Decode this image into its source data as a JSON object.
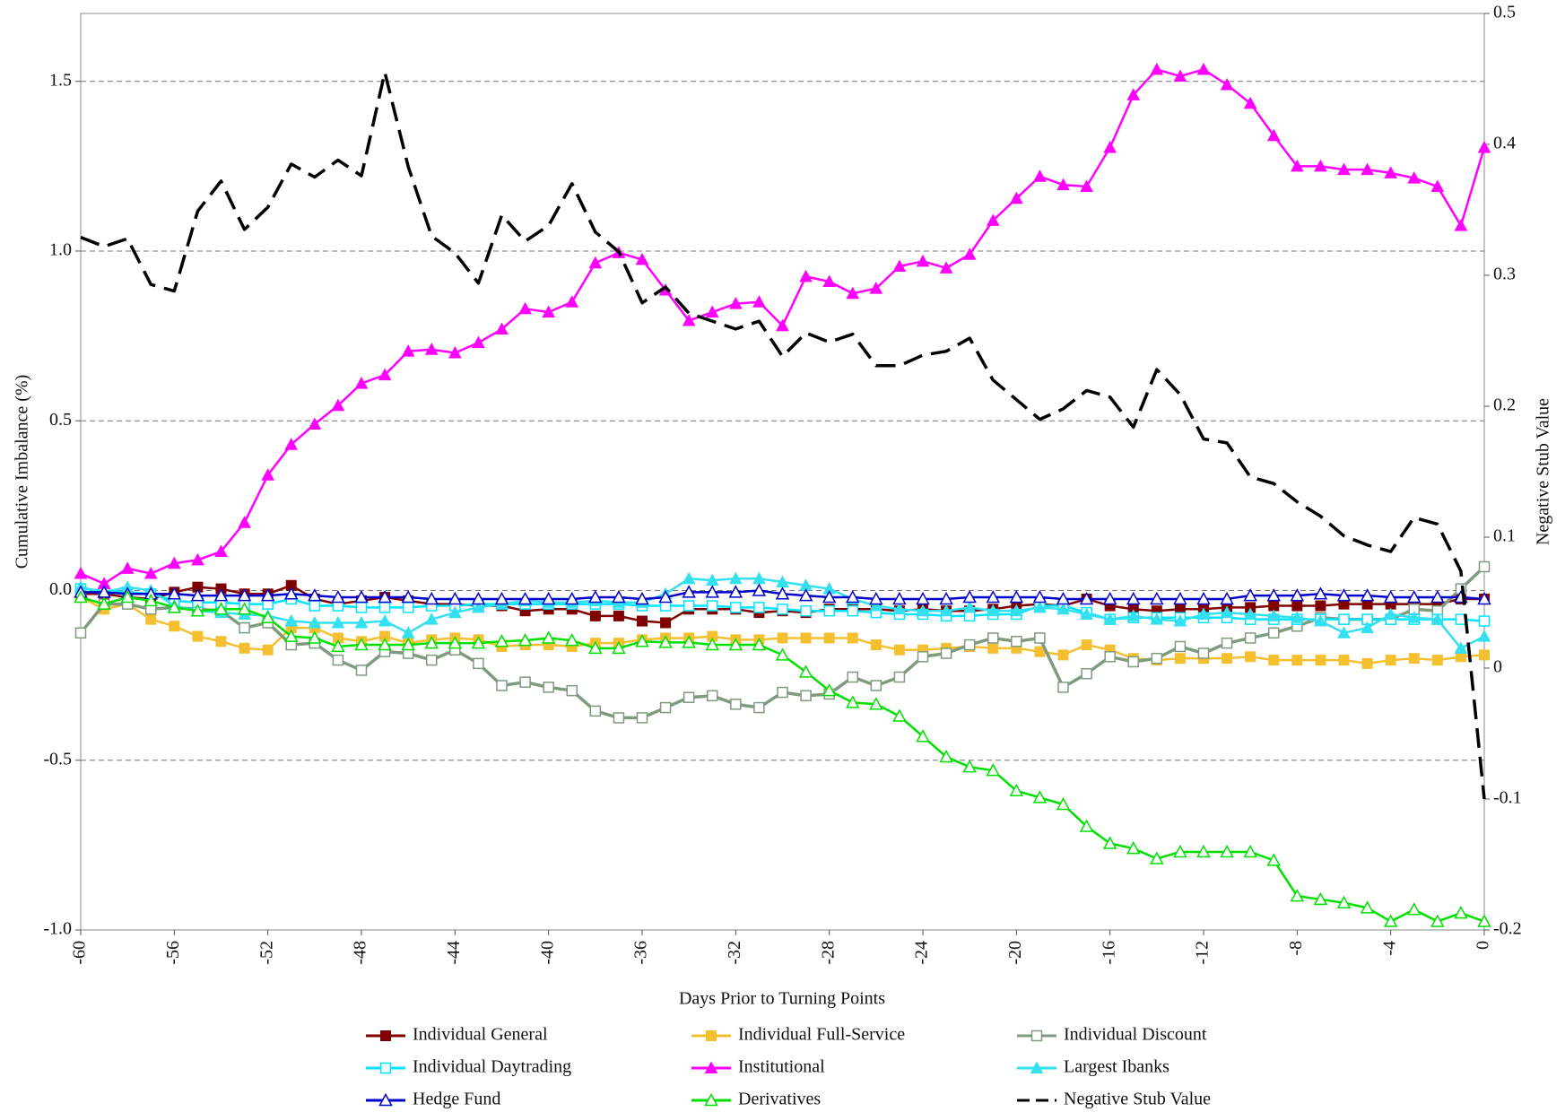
{
  "chart_data": {
    "type": "line",
    "x_label": "Days Prior to Turning Points",
    "y_label": "Cumulative Imbalance (%)",
    "y2_label": "Negative Stub Value",
    "x": [
      -60,
      -59,
      -58,
      -57,
      -56,
      -55,
      -54,
      -53,
      -52,
      -51,
      -50,
      -49,
      -48,
      -47,
      -46,
      -45,
      -44,
      -43,
      -42,
      -41,
      -40,
      -39,
      -38,
      -37,
      -36,
      -35,
      -34,
      -33,
      -32,
      -31,
      -30,
      -29,
      -28,
      -27,
      -26,
      -25,
      -24,
      -23,
      -22,
      -21,
      -20,
      -19,
      -18,
      -17,
      -16,
      -15,
      -14,
      -13,
      -12,
      -11,
      -10,
      -9,
      -8,
      -7,
      -6,
      -5,
      -4,
      -3,
      -2,
      -1,
      0
    ],
    "xlim": [
      -60,
      0
    ],
    "xticks": [
      -60,
      -56,
      -52,
      -48,
      -44,
      -40,
      -36,
      -32,
      -28,
      -24,
      -20,
      -16,
      -12,
      -8,
      -4,
      0
    ],
    "ylim": [
      -1,
      1.7
    ],
    "yticks": [
      {
        "value": -1,
        "label": "-1.0"
      },
      -0.5,
      {
        "value": 0,
        "label": "0.0"
      },
      0.5,
      {
        "value": 1,
        "label": "1.0"
      },
      1.5
    ],
    "y2lim": [
      -0.2,
      0.5
    ],
    "y2ticks": [
      -0.2,
      -0.1,
      0,
      0.1,
      0.2,
      0.3,
      0.4,
      0.5
    ],
    "grid": true,
    "series": [
      {
        "name": "Individual General",
        "color": "#800000",
        "marker": "square",
        "values": [
          -0.01,
          -0.01,
          -0.02,
          -0.025,
          -0.005,
          0.01,
          0.005,
          -0.01,
          -0.01,
          0.015,
          -0.025,
          -0.04,
          -0.03,
          -0.02,
          -0.03,
          -0.04,
          -0.04,
          -0.045,
          -0.045,
          -0.06,
          -0.055,
          -0.055,
          -0.075,
          -0.075,
          -0.09,
          -0.095,
          -0.055,
          -0.055,
          -0.055,
          -0.065,
          -0.06,
          -0.065,
          -0.055,
          -0.055,
          -0.055,
          -0.06,
          -0.055,
          -0.06,
          -0.06,
          -0.055,
          -0.045,
          -0.04,
          -0.045,
          -0.025,
          -0.045,
          -0.055,
          -0.06,
          -0.055,
          -0.055,
          -0.05,
          -0.05,
          -0.045,
          -0.045,
          -0.045,
          -0.04,
          -0.04,
          -0.04,
          -0.04,
          -0.04,
          -0.025,
          -0.025
        ]
      },
      {
        "name": "Individual Full-Service",
        "color": "#f5c030",
        "marker": "square",
        "values": [
          -0.02,
          -0.055,
          -0.04,
          -0.085,
          -0.105,
          -0.135,
          -0.15,
          -0.17,
          -0.175,
          -0.11,
          -0.11,
          -0.14,
          -0.15,
          -0.135,
          -0.155,
          -0.145,
          -0.14,
          -0.145,
          -0.165,
          -0.16,
          -0.16,
          -0.165,
          -0.155,
          -0.155,
          -0.145,
          -0.14,
          -0.14,
          -0.135,
          -0.145,
          -0.145,
          -0.14,
          -0.14,
          -0.14,
          -0.14,
          -0.16,
          -0.175,
          -0.175,
          -0.17,
          -0.165,
          -0.17,
          -0.17,
          -0.18,
          -0.19,
          -0.16,
          -0.175,
          -0.2,
          -0.205,
          -0.2,
          -0.2,
          -0.2,
          -0.195,
          -0.205,
          -0.205,
          -0.205,
          -0.205,
          -0.215,
          -0.205,
          -0.2,
          -0.205,
          -0.195,
          -0.19
        ]
      },
      {
        "name": "Individual Discount",
        "color": "#7f9a7f",
        "marker": "open-square",
        "values": [
          -0.125,
          -0.04,
          -0.04,
          -0.055,
          -0.05,
          -0.055,
          -0.06,
          -0.11,
          -0.095,
          -0.16,
          -0.155,
          -0.205,
          -0.235,
          -0.18,
          -0.185,
          -0.205,
          -0.175,
          -0.215,
          -0.28,
          -0.27,
          -0.285,
          -0.295,
          -0.355,
          -0.375,
          -0.375,
          -0.345,
          -0.315,
          -0.31,
          -0.335,
          -0.345,
          -0.3,
          -0.31,
          -0.305,
          -0.255,
          -0.28,
          -0.255,
          -0.195,
          -0.185,
          -0.16,
          -0.14,
          -0.15,
          -0.14,
          -0.285,
          -0.245,
          -0.195,
          -0.21,
          -0.2,
          -0.165,
          -0.185,
          -0.155,
          -0.14,
          -0.125,
          -0.105,
          -0.08,
          -0.085,
          -0.085,
          -0.085,
          -0.055,
          -0.06,
          0.005,
          0.07
        ]
      },
      {
        "name": "Individual Daytrading",
        "color": "#00e5ff",
        "marker": "open-square",
        "values": [
          0.005,
          0.0,
          -0.005,
          -0.01,
          -0.03,
          -0.035,
          -0.035,
          -0.04,
          -0.04,
          -0.025,
          -0.045,
          -0.045,
          -0.05,
          -0.05,
          -0.05,
          -0.045,
          -0.045,
          -0.04,
          -0.04,
          -0.04,
          -0.04,
          -0.04,
          -0.04,
          -0.04,
          -0.045,
          -0.045,
          -0.045,
          -0.045,
          -0.05,
          -0.05,
          -0.055,
          -0.06,
          -0.06,
          -0.06,
          -0.065,
          -0.07,
          -0.07,
          -0.075,
          -0.075,
          -0.07,
          -0.07,
          -0.045,
          -0.045,
          -0.065,
          -0.085,
          -0.08,
          -0.08,
          -0.08,
          -0.08,
          -0.08,
          -0.085,
          -0.085,
          -0.085,
          -0.085,
          -0.085,
          -0.085,
          -0.085,
          -0.085,
          -0.085,
          -0.085,
          -0.09
        ]
      },
      {
        "name": "Institutional",
        "color": "#ff00ff",
        "marker": "triangle",
        "values": [
          0.05,
          0.02,
          0.065,
          0.05,
          0.08,
          0.09,
          0.115,
          0.2,
          0.34,
          0.43,
          0.49,
          0.545,
          0.61,
          0.635,
          0.705,
          0.71,
          0.7,
          0.73,
          0.77,
          0.83,
          0.82,
          0.85,
          0.965,
          0.995,
          0.975,
          0.885,
          0.795,
          0.82,
          0.845,
          0.85,
          0.78,
          0.925,
          0.91,
          0.875,
          0.89,
          0.955,
          0.97,
          0.95,
          0.99,
          1.09,
          1.155,
          1.22,
          1.195,
          1.19,
          1.305,
          1.46,
          1.535,
          1.515,
          1.535,
          1.49,
          1.435,
          1.34,
          1.25,
          1.25,
          1.24,
          1.24,
          1.23,
          1.215,
          1.19,
          1.075,
          1.305
        ]
      },
      {
        "name": "Largest Ibanks",
        "color": "#33e0f0",
        "marker": "triangle",
        "values": [
          0.01,
          -0.005,
          0.01,
          0.0,
          -0.045,
          -0.06,
          -0.065,
          -0.07,
          -0.075,
          -0.09,
          -0.095,
          -0.095,
          -0.095,
          -0.09,
          -0.125,
          -0.085,
          -0.065,
          -0.05,
          -0.04,
          -0.03,
          -0.035,
          -0.035,
          -0.03,
          -0.035,
          -0.035,
          -0.01,
          0.035,
          0.03,
          0.035,
          0.035,
          0.025,
          0.015,
          0.005,
          -0.025,
          -0.045,
          -0.055,
          -0.06,
          -0.06,
          -0.05,
          -0.06,
          -0.06,
          -0.05,
          -0.055,
          -0.07,
          -0.085,
          -0.075,
          -0.085,
          -0.09,
          -0.07,
          -0.065,
          -0.07,
          -0.075,
          -0.08,
          -0.09,
          -0.125,
          -0.11,
          -0.07,
          -0.08,
          -0.085,
          -0.17,
          -0.135
        ]
      },
      {
        "name": "Hedge Fund",
        "color": "#0000cc",
        "marker": "open-triangle",
        "values": [
          -0.005,
          -0.005,
          -0.01,
          -0.01,
          -0.01,
          -0.015,
          -0.015,
          -0.015,
          -0.015,
          -0.01,
          -0.015,
          -0.02,
          -0.02,
          -0.02,
          -0.02,
          -0.025,
          -0.025,
          -0.025,
          -0.025,
          -0.025,
          -0.025,
          -0.025,
          -0.02,
          -0.02,
          -0.025,
          -0.02,
          -0.005,
          -0.005,
          -0.005,
          0.0,
          -0.01,
          -0.015,
          -0.02,
          -0.02,
          -0.025,
          -0.025,
          -0.025,
          -0.025,
          -0.02,
          -0.02,
          -0.02,
          -0.02,
          -0.025,
          -0.025,
          -0.025,
          -0.025,
          -0.025,
          -0.025,
          -0.025,
          -0.025,
          -0.015,
          -0.015,
          -0.015,
          -0.01,
          -0.015,
          -0.015,
          -0.02,
          -0.02,
          -0.02,
          -0.02,
          -0.025
        ]
      },
      {
        "name": "Derivatives",
        "color": "#00e000",
        "marker": "open-triangle",
        "values": [
          -0.02,
          -0.04,
          -0.02,
          -0.03,
          -0.05,
          -0.06,
          -0.055,
          -0.055,
          -0.08,
          -0.135,
          -0.14,
          -0.165,
          -0.16,
          -0.16,
          -0.16,
          -0.155,
          -0.155,
          -0.155,
          -0.15,
          -0.147,
          -0.14,
          -0.147,
          -0.17,
          -0.17,
          -0.15,
          -0.153,
          -0.153,
          -0.16,
          -0.16,
          -0.16,
          -0.19,
          -0.24,
          -0.295,
          -0.33,
          -0.335,
          -0.37,
          -0.43,
          -0.49,
          -0.52,
          -0.53,
          -0.59,
          -0.61,
          -0.63,
          -0.695,
          -0.745,
          -0.76,
          -0.79,
          -0.77,
          -0.77,
          -0.77,
          -0.77,
          -0.795,
          -0.9,
          -0.91,
          -0.92,
          -0.935,
          -0.975,
          -0.94,
          -0.975,
          -0.95,
          -0.975
        ]
      },
      {
        "name": "Negative Stub Value",
        "color": "#000000",
        "marker": "none",
        "dashed": true,
        "axis": "y2",
        "values": [
          0.329,
          0.322,
          0.328,
          0.293,
          0.288,
          0.349,
          0.372,
          0.335,
          0.352,
          0.385,
          0.375,
          0.388,
          0.376,
          0.455,
          0.383,
          0.33,
          0.317,
          0.294,
          0.346,
          0.326,
          0.338,
          0.37,
          0.333,
          0.318,
          0.279,
          0.291,
          0.271,
          0.265,
          0.259,
          0.265,
          0.238,
          0.256,
          0.249,
          0.255,
          0.231,
          0.231,
          0.239,
          0.242,
          0.252,
          0.22,
          0.205,
          0.19,
          0.198,
          0.212,
          0.207,
          0.184,
          0.228,
          0.209,
          0.175,
          0.172,
          0.146,
          0.141,
          0.127,
          0.116,
          0.101,
          0.094,
          0.089,
          0.115,
          0.11,
          0.074,
          -0.1
        ]
      }
    ]
  }
}
